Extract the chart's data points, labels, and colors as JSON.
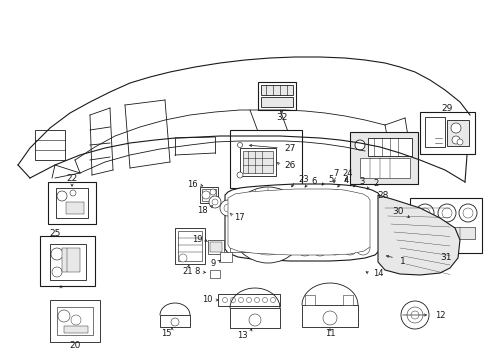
{
  "bg_color": "#ffffff",
  "line_color": "#1a1a1a",
  "fig_width": 4.89,
  "fig_height": 3.6,
  "dpi": 100,
  "gray_fill": "#d8d8d8",
  "light_gray": "#e8e8e8"
}
